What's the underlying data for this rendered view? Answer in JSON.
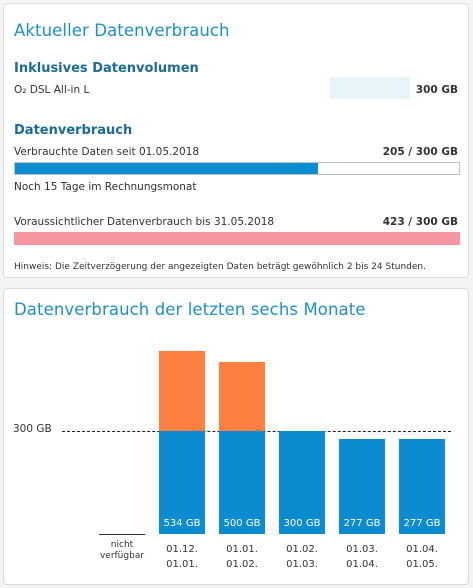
{
  "usage": {
    "title": "Aktueller Datenverbrauch",
    "inclusive": {
      "heading": "Inklusives Datenvolumen",
      "plan": "O₂ DSL All-in L",
      "volume": "300 GB"
    },
    "consumption": {
      "heading": "Datenverbrauch",
      "used_label": "Verbrauchte Daten seit 01.05.2018",
      "used_value": "205 / 300 GB",
      "used_fraction": 0.6833,
      "days_left": "Noch 15 Tage im Rechnungsmonat",
      "forecast_label": "Voraussichtlicher Datenverbrauch bis 31.05.2018",
      "forecast_value": "423 / 300 GB",
      "forecast_fraction": 1.0
    },
    "hint": "Hinweis: Die Zeitverzögerung der angezeigten Daten beträgt gewöhnlich 2 bis 24 Stunden.",
    "colors": {
      "used_bar": "#0b8bd0",
      "forecast_bar": "#f497a3"
    }
  },
  "history": {
    "title": "Datenverbrauch der letzten sechs Monate"
  },
  "chart_data": {
    "type": "bar",
    "title": "Datenverbrauch der letzten sechs Monate",
    "unit": "GB",
    "reference_line": {
      "value": 300,
      "label": "300 GB"
    },
    "categories": [
      [
        "nicht",
        "verfügbar"
      ],
      [
        "01.12.",
        "01.01."
      ],
      [
        "01.01.",
        "01.02."
      ],
      [
        "01.02.",
        "01.03."
      ],
      [
        "01.03.",
        "01.04."
      ],
      [
        "01.04.",
        "01.05."
      ]
    ],
    "values": [
      null,
      534,
      500,
      300,
      277,
      277
    ],
    "value_labels": [
      "",
      "534 GB",
      "500 GB",
      "300 GB",
      "277 GB",
      "277 GB"
    ],
    "colors": {
      "within": "#0b8bd0",
      "over": "#ff7f41"
    }
  }
}
